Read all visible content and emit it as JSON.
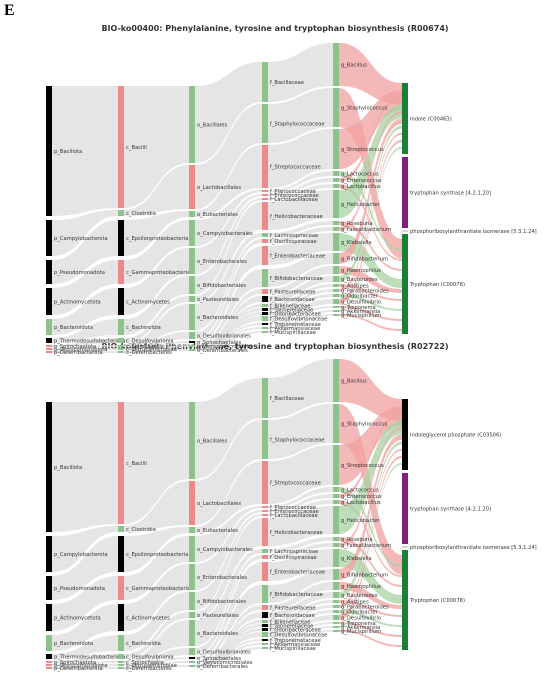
{
  "panel_letter": "E",
  "colors": {
    "black": "#000000",
    "red": "#ec8a8a",
    "green": "#8cc28c",
    "purple": "#80207e",
    "dkgreen": "#1a7f37",
    "grey": "#d8d8d8",
    "link_red": "#f2a0a0",
    "link_green": "#a8d3a3",
    "link_grey": "#dcdcdc"
  },
  "diagrams": [
    {
      "title": "BIO-ko00400: Phenylalanine, tyrosine and tryptophan biosynthesis (R00674)",
      "phylum": [
        "p_Bacillota",
        "p_Campylobacterota",
        "p_Pseudomonadota",
        "p_Actinomycetota",
        "p_Bacteroidota",
        "p_Thermodesulfobacteriota",
        "p_Spirochaetota",
        "p_Verrucomicrobiota",
        "p_Deferribacterota"
      ],
      "class": [
        "c_Bacilli",
        "c_Clostridia",
        "c_Epsilonproteobacteria",
        "c_Gammaproteobacteria",
        "c_Actinomycetes",
        "c_Bacteroidia",
        "c_Desulfovibrionia",
        "c_Spirochaetia",
        "c_Verrucomicrobiae",
        "c_Deferribacteres"
      ],
      "order": [
        "o_Bacillales",
        "o_Lactobacillales",
        "o_Eubacteriales",
        "o_Campylobacterales",
        "o_Enterobacterales",
        "o_Bifidobacteriales",
        "o_Pasteurellales",
        "o_Bacteroidales",
        "o_Desulfovibrionales",
        "o_Spirochaetales",
        "o_Verrucomicrobiales",
        "o_Deferribacterales"
      ],
      "family": [
        "f_Bacillaceae",
        "f_Staphylococcaceae",
        "f_Streptococcaceae",
        "f_Planococcaceae",
        "f_Enterococcaceae",
        "f_Lactobacillaceae",
        "f_Helicobacteraceae",
        "f_Lachnospiraceae",
        "f_Oscillospiraceae",
        "f_Enterobacteriaceae",
        "f_Bifidobacteriaceae",
        "f_Pasteurellaceae",
        "f_Bacteroidaceae",
        "f_Rikenellaceae",
        "f_Tannerellaceae",
        "f_Odoribacteraceae",
        "f_Desulfovibrionaceae",
        "f_Treponemataceae",
        "f_Akkermansiaceae",
        "f_Mucispirillaceae"
      ],
      "genus": [
        "g_Bacillus",
        "g_Staphylococcus",
        "g_Streptococcus",
        "g_Lactococcus",
        "g_Enterococcus",
        "g_Lactobacillus",
        "g_Helicobacter",
        "g_Roseburia",
        "g_Faecalibacterium",
        "g_Klebsiella",
        "g_Bifidobacterium",
        "g_Haemophilus",
        "g_Bacteroides",
        "g_Alistipes",
        "g_Parabacteroides",
        "g_Odoribacter",
        "g_Desulfovibrio",
        "g_Treponema",
        "g_Akkermansia",
        "g_Mucispirillum"
      ],
      "targets": [
        "Indole (C00463)",
        "tryptophan synthase [4.2.1.20]",
        "phosphoribosylanthranilate isomerase [5.3.1.24]",
        "Tryptophan (C00078)"
      ]
    },
    {
      "title": "BIO-ko00400: Phenylalanine, tyrosine and tryptophan biosynthesis (R02722)",
      "phylum": [
        "p_Bacillota",
        "p_Campylobacterota",
        "p_Pseudomonadota",
        "p_Actinomycetota",
        "p_Bacteroidota",
        "p_Thermodesulfobacteriota",
        "p_Spirochaetota",
        "p_Verrucomicrobiota",
        "p_Deferribacterota"
      ],
      "class": [
        "c_Bacilli",
        "c_Clostridia",
        "c_Epsilonproteobacteria",
        "c_Gammaproteobacteria",
        "c_Actinomycetes",
        "c_Bacteroidia",
        "c_Desulfovibrionia",
        "c_Spirochaetia",
        "c_Verrucomicrobiae",
        "c_Deferribacteres"
      ],
      "order": [
        "o_Bacillales",
        "o_Lactobacillales",
        "o_Eubacteriales",
        "o_Campylobacterales",
        "o_Enterobacterales",
        "o_Bifidobacteriales",
        "o_Pasteurellales",
        "o_Bacteroidales",
        "o_Desulfovibrionales",
        "o_Spirochaetales",
        "o_Verrucomicrobiales",
        "o_Deferribacterales"
      ],
      "family": [
        "f_Bacillaceae",
        "f_Staphylococcaceae",
        "f_Streptococcaceae",
        "f_Planococcaceae",
        "f_Enterococcaceae",
        "f_Lactobacillaceae",
        "f_Helicobacteraceae",
        "f_Lachnospiraceae",
        "f_Oscillospiraceae",
        "f_Enterobacteriaceae",
        "f_Bifidobacteriaceae",
        "f_Pasteurellaceae",
        "f_Bacteroidaceae",
        "f_Rikenellaceae",
        "f_Tannerellaceae",
        "f_Odoribacteraceae",
        "f_Desulfovibrionaceae",
        "f_Treponemataceae",
        "f_Akkermansiaceae",
        "f_Mucispirillaceae"
      ],
      "genus": [
        "g_Bacillus",
        "g_Staphylococcus",
        "g_Streptococcus",
        "g_Lactococcus",
        "g_Enterococcus",
        "g_Lactobacillus",
        "g_Helicobacter",
        "g_Roseburia",
        "g_Faecalibacterium",
        "g_Klebsiella",
        "g_Bifidobacterium",
        "g_Haemophilus",
        "g_Bacteroides",
        "g_Alistipes",
        "g_Parabacteroides",
        "g_Odoribacter",
        "g_Desulfovibrio",
        "g_Treponema",
        "g_Akkermansia",
        "g_Mucispirillum"
      ],
      "targets": [
        "Indoleglycerol phosphate (C03506)",
        "tryptophan synthase [4.2.1.20]",
        "phosphoribosylanthranilate isomerase [5.3.1.24]",
        "Tryptophan (C00078)"
      ]
    }
  ]
}
